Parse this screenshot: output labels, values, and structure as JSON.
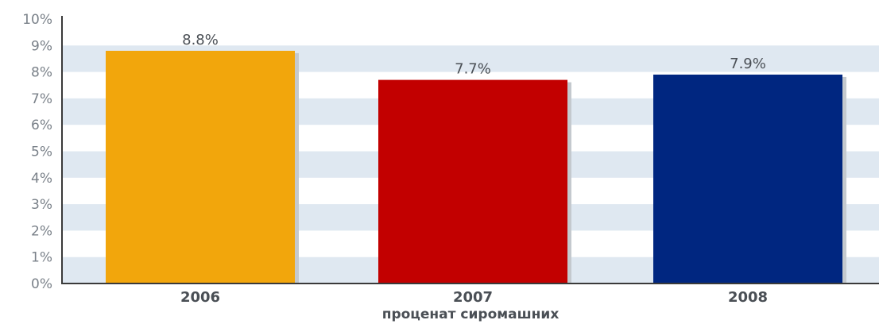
{
  "chart_data": {
    "type": "bar",
    "categories": [
      "2006",
      "2007",
      "2008"
    ],
    "values": [
      8.8,
      7.7,
      7.9
    ],
    "data_labels": [
      "8.8%",
      "7.7%",
      "7.9%"
    ],
    "xlabel": "проценат сиромашних",
    "ylabel": "",
    "ylim": [
      0,
      10
    ],
    "yticks": [
      "0%",
      "1%",
      "2%",
      "3%",
      "4%",
      "5%",
      "6%",
      "7%",
      "8%",
      "9%",
      "10%"
    ],
    "grid": "alternating horizontal bands",
    "colors": {
      "bars": [
        "#f2a60c",
        "#c20000",
        "#002680"
      ],
      "band": "#dfe8f1",
      "axis": "#3a3a3a",
      "bar_shadow": "#c4c9ce"
    }
  }
}
